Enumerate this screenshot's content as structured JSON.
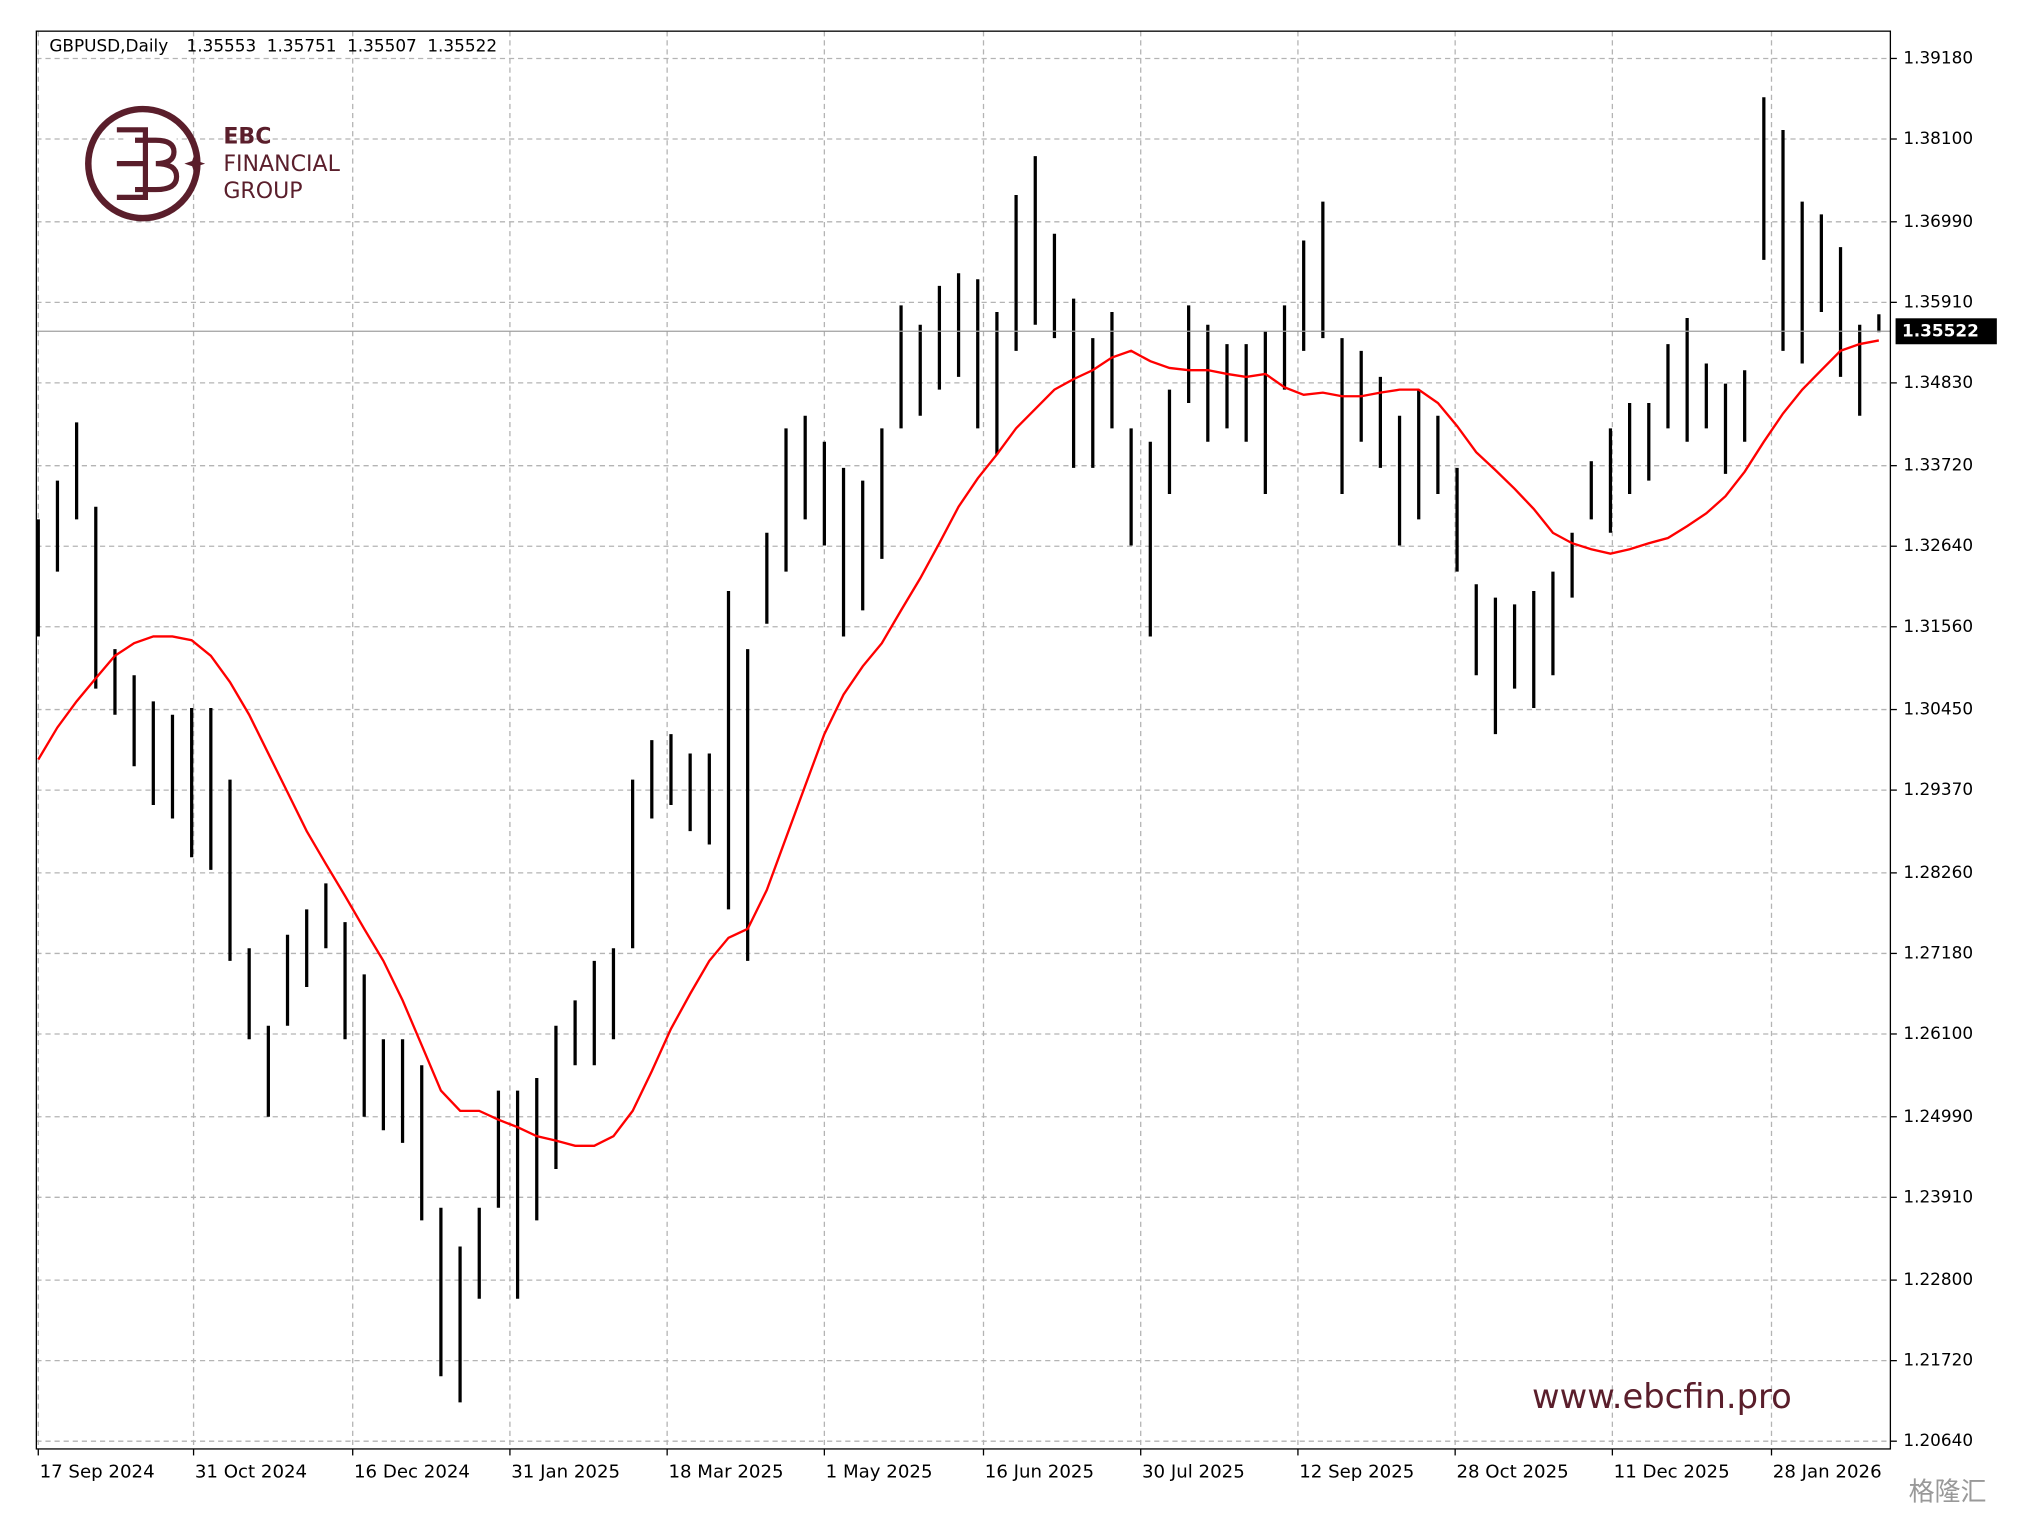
{
  "chart_data": {
    "type": "ohlc",
    "symbol": "GBPUSD,Daily",
    "last_ohlc": [
      1.35553,
      1.35751,
      1.35507,
      1.35522
    ],
    "brand": {
      "name": "EBC",
      "line1": "FINANCIAL",
      "line2": "GROUP",
      "url": "www.ebcfin.pro",
      "source": "格隆汇"
    },
    "bar_color": "#000000",
    "grid": true,
    "xlim": [
      -0.1,
      96.6
    ],
    "xticks": [
      {
        "value": 0,
        "label": "17 Sep 2024"
      },
      {
        "value": 8.1,
        "label": "31 Oct 2024"
      },
      {
        "value": 16.4,
        "label": "16 Dec 2024"
      },
      {
        "value": 24.6,
        "label": "31 Jan 2025"
      },
      {
        "value": 32.8,
        "label": "18 Mar 2025"
      },
      {
        "value": 41.0,
        "label": "1 May 2025"
      },
      {
        "value": 49.3,
        "label": "16 Jun 2025"
      },
      {
        "value": 57.5,
        "label": "30 Jul 2025"
      },
      {
        "value": 65.7,
        "label": "12 Sep 2025"
      },
      {
        "value": 73.9,
        "label": "28 Oct 2025"
      },
      {
        "value": 82.1,
        "label": "11 Dec 2025"
      },
      {
        "value": 90.4,
        "label": "28 Jan 2026"
      }
    ],
    "ylim": [
      1.20536,
      1.39546
    ],
    "yticks": [
      {
        "value": 1.3918,
        "label": "1.39180"
      },
      {
        "value": 1.381,
        "label": "1.38100"
      },
      {
        "value": 1.3699,
        "label": "1.36990"
      },
      {
        "value": 1.3591,
        "label": "1.35910"
      },
      {
        "value": 1.3483,
        "label": "1.34830"
      },
      {
        "value": 1.3372,
        "label": "1.33720"
      },
      {
        "value": 1.3264,
        "label": "1.32640"
      },
      {
        "value": 1.3156,
        "label": "1.31560"
      },
      {
        "value": 1.3045,
        "label": "1.30450"
      },
      {
        "value": 1.2937,
        "label": "1.29370"
      },
      {
        "value": 1.2826,
        "label": "1.28260"
      },
      {
        "value": 1.2718,
        "label": "1.27180"
      },
      {
        "value": 1.261,
        "label": "1.26100"
      },
      {
        "value": 1.2499,
        "label": "1.24990"
      },
      {
        "value": 1.2391,
        "label": "1.23910"
      },
      {
        "value": 1.228,
        "label": "1.22800"
      },
      {
        "value": 1.2172,
        "label": "1.21720"
      },
      {
        "value": 1.2064,
        "label": "1.20640"
      }
    ],
    "high": [
      1.33,
      1.3352,
      1.343,
      1.3317,
      1.3126,
      1.3091,
      1.3056,
      1.3038,
      1.3047,
      1.3047,
      1.2951,
      1.2725,
      1.2621,
      1.2743,
      1.2777,
      1.2812,
      1.276,
      1.269,
      1.2603,
      1.2603,
      1.2568,
      1.2377,
      1.2325,
      1.2377,
      1.2534,
      1.2534,
      1.2551,
      1.2621,
      1.2655,
      1.2708,
      1.2725,
      1.2951,
      1.3004,
      1.3012,
      1.2986,
      1.2986,
      1.3204,
      1.3126,
      1.3282,
      1.3422,
      1.3439,
      1.3404,
      1.3369,
      1.3352,
      1.3422,
      1.3587,
      1.3561,
      1.3613,
      1.363,
      1.3622,
      1.3578,
      1.3735,
      1.3787,
      1.3683,
      1.3596,
      1.3543,
      1.3578,
      1.3422,
      1.3404,
      1.3474,
      1.3587,
      1.3561,
      1.3535,
      1.3535,
      1.3552,
      1.3587,
      1.3674,
      1.3726,
      1.3543,
      1.3526,
      1.3491,
      1.3439,
      1.3474,
      1.3439,
      1.3369,
      1.3213,
      1.3195,
      1.3186,
      1.3204,
      1.323,
      1.3282,
      1.3378,
      1.3422,
      1.3456,
      1.3456,
      1.3535,
      1.357,
      1.3509,
      1.3482,
      1.35,
      1.3866,
      1.3822,
      1.3726,
      1.3709,
      1.3665,
      1.3561,
      1.3575
    ],
    "low": [
      1.3143,
      1.323,
      1.33,
      1.3073,
      1.3038,
      1.2969,
      1.2917,
      1.2899,
      1.2847,
      1.283,
      1.2708,
      1.2603,
      1.2499,
      1.2621,
      1.2673,
      1.2725,
      1.2603,
      1.2499,
      1.2481,
      1.2464,
      1.236,
      1.2151,
      1.2116,
      1.2255,
      1.2377,
      1.2255,
      1.236,
      1.2429,
      1.2568,
      1.2568,
      1.2603,
      1.2725,
      1.2899,
      1.2917,
      1.2882,
      1.2864,
      1.2777,
      1.2708,
      1.316,
      1.323,
      1.33,
      1.3265,
      1.3143,
      1.3178,
      1.3247,
      1.3422,
      1.3439,
      1.3474,
      1.3491,
      1.3422,
      1.3387,
      1.3526,
      1.3561,
      1.3543,
      1.3369,
      1.3369,
      1.3422,
      1.3265,
      1.3143,
      1.3334,
      1.3456,
      1.3404,
      1.3422,
      1.3404,
      1.3334,
      1.3474,
      1.3526,
      1.3543,
      1.3334,
      1.3404,
      1.3369,
      1.3265,
      1.33,
      1.3334,
      1.323,
      1.3091,
      1.3012,
      1.3073,
      1.3047,
      1.3091,
      1.3195,
      1.33,
      1.3282,
      1.3334,
      1.3352,
      1.3422,
      1.3404,
      1.3422,
      1.3361,
      1.3404,
      1.3648,
      1.3526,
      1.3509,
      1.3578,
      1.3491,
      1.3439,
      1.3551
    ],
    "ma": {
      "color": "#ff0000",
      "values": [
        1.2978,
        1.3021,
        1.3056,
        1.3087,
        1.3117,
        1.3134,
        1.3143,
        1.3143,
        1.3138,
        1.3117,
        1.3082,
        1.3038,
        1.2986,
        1.2934,
        1.2882,
        1.2838,
        1.2795,
        1.2751,
        1.2708,
        1.2655,
        1.2595,
        1.2534,
        1.2507,
        1.2507,
        1.2495,
        1.2485,
        1.2473,
        1.2467,
        1.246,
        1.246,
        1.2473,
        1.2507,
        1.256,
        1.2617,
        1.2664,
        1.2708,
        1.2739,
        1.2751,
        1.2803,
        1.2873,
        1.2943,
        1.3012,
        1.3065,
        1.3103,
        1.3134,
        1.3178,
        1.3221,
        1.3268,
        1.3317,
        1.3355,
        1.3387,
        1.3422,
        1.3448,
        1.3474,
        1.3488,
        1.35,
        1.3517,
        1.3526,
        1.3512,
        1.3503,
        1.35,
        1.35,
        1.3495,
        1.3491,
        1.3495,
        1.3477,
        1.3467,
        1.347,
        1.3465,
        1.3465,
        1.347,
        1.3474,
        1.3474,
        1.3456,
        1.3425,
        1.339,
        1.3366,
        1.3341,
        1.3314,
        1.3282,
        1.3268,
        1.326,
        1.3254,
        1.326,
        1.3268,
        1.3275,
        1.3291,
        1.3308,
        1.3331,
        1.3364,
        1.3404,
        1.3442,
        1.3474,
        1.35,
        1.3526,
        1.3535,
        1.354
      ]
    }
  }
}
